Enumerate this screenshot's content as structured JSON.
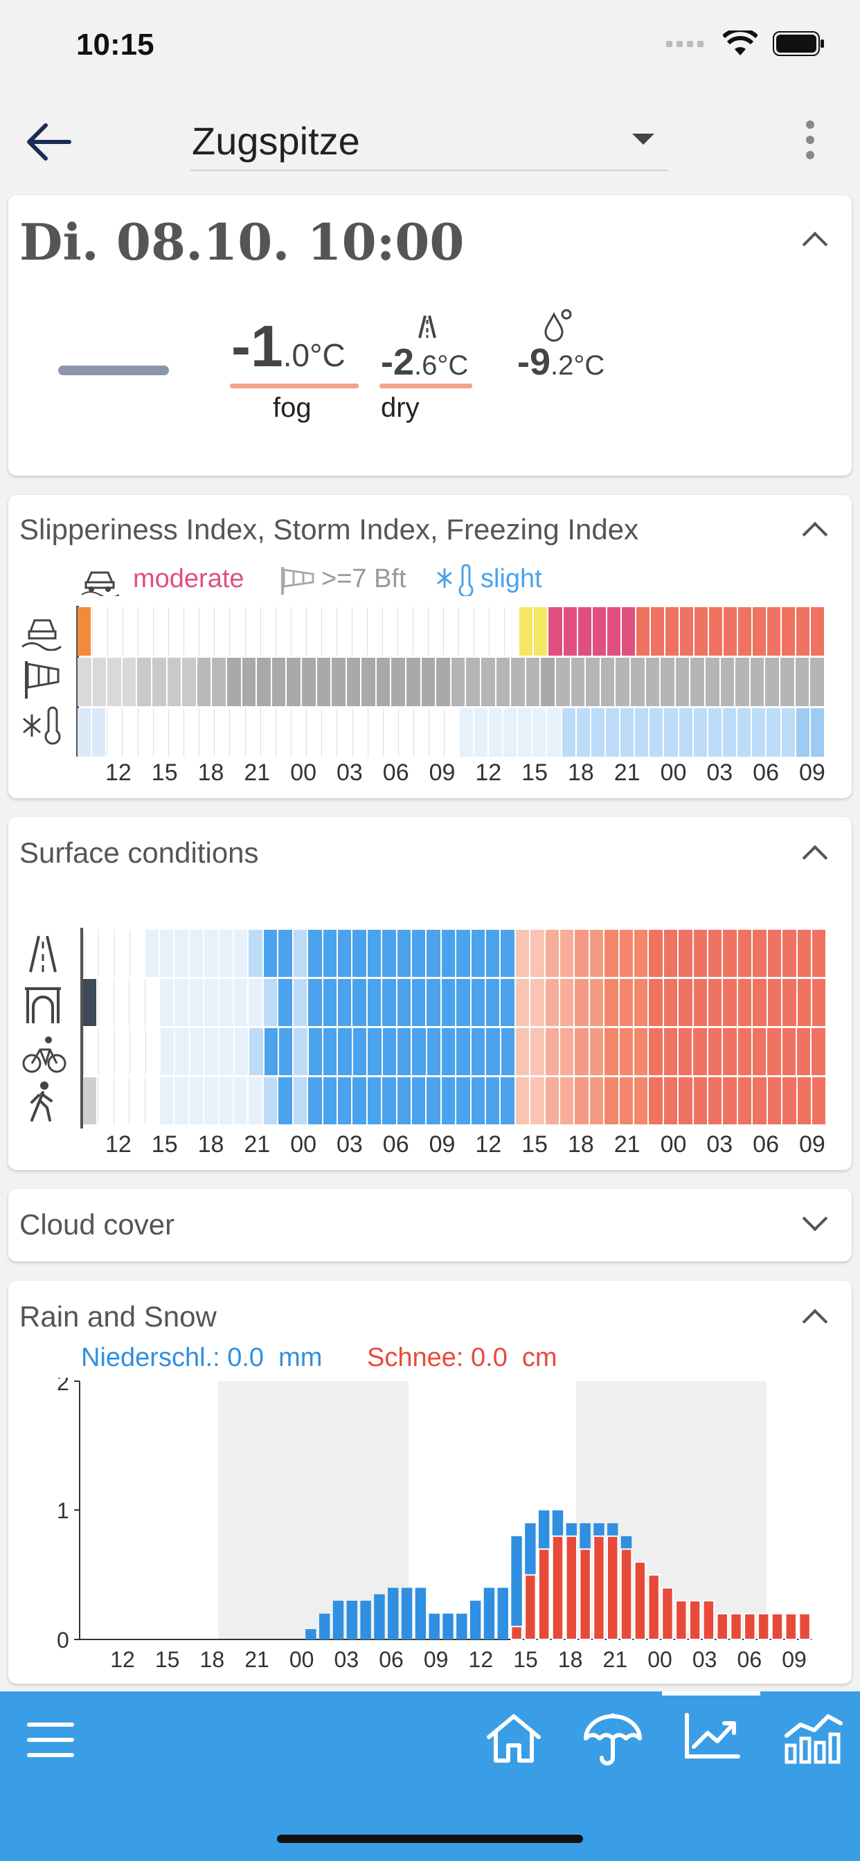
{
  "status": {
    "time": "10:15"
  },
  "header": {
    "title": "Zugspitze"
  },
  "current": {
    "datetime": "Di. 08.10. 10:00",
    "air_temp_int": "-1",
    "air_temp_dec": ".0°C",
    "air_label": "fog",
    "road_temp_int": "-2",
    "road_temp_dec": ".6°C",
    "road_label": "dry",
    "dew_temp_int": "-9",
    "dew_temp_dec": ".2°C"
  },
  "indices": {
    "title": "Slipperiness Index, Storm Index, Freezing Index",
    "slippery_label": "moderate",
    "storm_label": ">=7 Bft",
    "freezing_label": "slight",
    "hour_ticks": [
      "12",
      "15",
      "18",
      "21",
      "00",
      "03",
      "06",
      "09",
      "12",
      "15",
      "18",
      "21",
      "00",
      "03",
      "06",
      "09"
    ],
    "slippery_cells": [
      "#f28a3c",
      "#fff",
      "#fff",
      "#fff",
      "#fff",
      "#fff",
      "#fff",
      "#fff",
      "#fff",
      "#fff",
      "#fff",
      "#fff",
      "#fff",
      "#fff",
      "#fff",
      "#fff",
      "#fff",
      "#fff",
      "#fff",
      "#fff",
      "#fff",
      "#fff",
      "#fff",
      "#fff",
      "#fff",
      "#fff",
      "#fff",
      "#fff",
      "#fff",
      "#f5e663",
      "#f5e663",
      "#e0507f",
      "#e0507f",
      "#e0507f",
      "#e0507f",
      "#e0507f",
      "#e0507f",
      "#f07260",
      "#f07260",
      "#f07260",
      "#f07260",
      "#f07260",
      "#f07260",
      "#f07260",
      "#f07260",
      "#f07260",
      "#f07260",
      "#f07260",
      "#f07260",
      "#f07260"
    ],
    "storm_cells": [
      "#d9d9d9",
      "#d9d9d9",
      "#d9d9d9",
      "#d9d9d9",
      "#c9c9c9",
      "#c9c9c9",
      "#c9c9c9",
      "#c9c9c9",
      "#b9b9b9",
      "#b9b9b9",
      "#a9a9a9",
      "#a9a9a9",
      "#a9a9a9",
      "#a9a9a9",
      "#a9a9a9",
      "#a9a9a9",
      "#a9a9a9",
      "#a9a9a9",
      "#a9a9a9",
      "#a9a9a9",
      "#a9a9a9",
      "#a9a9a9",
      "#a9a9a9",
      "#a9a9a9",
      "#a9a9a9",
      "#b5b5b5",
      "#b5b5b5",
      "#b5b5b5",
      "#b5b5b5",
      "#b5b5b5",
      "#b5b5b5",
      "#a9a9a9",
      "#b5b5b5",
      "#b5b5b5",
      "#b5b5b5",
      "#b5b5b5",
      "#b5b5b5",
      "#b5b5b5",
      "#b5b5b5",
      "#b5b5b5",
      "#b5b5b5",
      "#b5b5b5",
      "#b5b5b5",
      "#b5b5b5",
      "#b5b5b5",
      "#b5b5b5",
      "#b5b5b5",
      "#b5b5b5",
      "#b5b5b5",
      "#b5b5b5"
    ],
    "freezing_cells": [
      "#dbeaf8",
      "#dbeaf8",
      "#fff",
      "#fff",
      "#fff",
      "#fff",
      "#fff",
      "#fff",
      "#fff",
      "#fff",
      "#fff",
      "#fff",
      "#fff",
      "#fff",
      "#fff",
      "#fff",
      "#fff",
      "#fff",
      "#fff",
      "#fff",
      "#fff",
      "#fff",
      "#fff",
      "#fff",
      "#fff",
      "#e6f1fb",
      "#e6f1fb",
      "#e6f1fb",
      "#e6f1fb",
      "#e6f1fb",
      "#e6f1fb",
      "#e6f1fb",
      "#bcdcf7",
      "#bcdcf7",
      "#bcdcf7",
      "#bcdcf7",
      "#bcdcf7",
      "#bcdcf7",
      "#bcdcf7",
      "#bcdcf7",
      "#bcdcf7",
      "#bcdcf7",
      "#bcdcf7",
      "#bcdcf7",
      "#bcdcf7",
      "#bcdcf7",
      "#bcdcf7",
      "#bcdcf7",
      "#9ecbf3",
      "#9ecbf3"
    ]
  },
  "surface": {
    "title": "Surface conditions",
    "hour_ticks": [
      "12",
      "15",
      "18",
      "21",
      "00",
      "03",
      "06",
      "09",
      "12",
      "15",
      "18",
      "21",
      "00",
      "03",
      "06",
      "09"
    ],
    "rows": [
      [
        "#fff",
        "#fff",
        "#fff",
        "#fff",
        "#e6f1fb",
        "#e6f1fb",
        "#e6f1fb",
        "#e6f1fb",
        "#e6f1fb",
        "#e6f1fb",
        "#e6f1fb",
        "#bcdcf7",
        "#4aa3ec",
        "#4aa3ec",
        "#bcdcf7",
        "#4aa3ec",
        "#4aa3ec",
        "#4aa3ec",
        "#4aa3ec",
        "#4aa3ec",
        "#4aa3ec",
        "#4aa3ec",
        "#4aa3ec",
        "#4aa3ec",
        "#4aa3ec",
        "#4aa3ec",
        "#4aa3ec",
        "#4aa3ec",
        "#4aa3ec",
        "#f9c4b4",
        "#f9c4b4",
        "#f7ad98",
        "#f7ad98",
        "#f59a82",
        "#f59a82",
        "#f4866b",
        "#f4866b",
        "#f4866b",
        "#f07260",
        "#f07260",
        "#f07260",
        "#f07260",
        "#f07260",
        "#f07260",
        "#f07260",
        "#f07260",
        "#f07260",
        "#f07260",
        "#f07260",
        "#f07260"
      ],
      [
        "#3d4a57",
        "#fff",
        "#fff",
        "#fff",
        "#fff",
        "#e6f1fb",
        "#e6f1fb",
        "#e6f1fb",
        "#e6f1fb",
        "#e6f1fb",
        "#e6f1fb",
        "#e6f1fb",
        "#bcdcf7",
        "#4aa3ec",
        "#bcdcf7",
        "#4aa3ec",
        "#4aa3ec",
        "#4aa3ec",
        "#4aa3ec",
        "#4aa3ec",
        "#4aa3ec",
        "#4aa3ec",
        "#4aa3ec",
        "#4aa3ec",
        "#4aa3ec",
        "#4aa3ec",
        "#4aa3ec",
        "#4aa3ec",
        "#4aa3ec",
        "#f9c4b4",
        "#f9c4b4",
        "#f7ad98",
        "#f7ad98",
        "#f59a82",
        "#f59a82",
        "#f4866b",
        "#f4866b",
        "#f4866b",
        "#f07260",
        "#f07260",
        "#f07260",
        "#f07260",
        "#f07260",
        "#f07260",
        "#f07260",
        "#f07260",
        "#f07260",
        "#f07260",
        "#f07260",
        "#f07260"
      ],
      [
        "#fff",
        "#fff",
        "#fff",
        "#fff",
        "#fff",
        "#e6f1fb",
        "#e6f1fb",
        "#e6f1fb",
        "#e6f1fb",
        "#e6f1fb",
        "#e6f1fb",
        "#bcdcf7",
        "#4aa3ec",
        "#4aa3ec",
        "#bcdcf7",
        "#4aa3ec",
        "#4aa3ec",
        "#4aa3ec",
        "#4aa3ec",
        "#4aa3ec",
        "#4aa3ec",
        "#4aa3ec",
        "#4aa3ec",
        "#4aa3ec",
        "#4aa3ec",
        "#4aa3ec",
        "#4aa3ec",
        "#4aa3ec",
        "#4aa3ec",
        "#f9c4b4",
        "#f9c4b4",
        "#f7ad98",
        "#f7ad98",
        "#f59a82",
        "#f59a82",
        "#f4866b",
        "#f4866b",
        "#f4866b",
        "#f07260",
        "#f07260",
        "#f07260",
        "#f07260",
        "#f07260",
        "#f07260",
        "#f07260",
        "#f07260",
        "#f07260",
        "#f07260",
        "#f07260",
        "#f07260"
      ],
      [
        "#cfcfcf",
        "#fff",
        "#fff",
        "#fff",
        "#fff",
        "#e6f1fb",
        "#e6f1fb",
        "#e6f1fb",
        "#e6f1fb",
        "#e6f1fb",
        "#e6f1fb",
        "#e6f1fb",
        "#bcdcf7",
        "#4aa3ec",
        "#bcdcf7",
        "#4aa3ec",
        "#4aa3ec",
        "#4aa3ec",
        "#4aa3ec",
        "#4aa3ec",
        "#4aa3ec",
        "#4aa3ec",
        "#4aa3ec",
        "#4aa3ec",
        "#4aa3ec",
        "#4aa3ec",
        "#4aa3ec",
        "#4aa3ec",
        "#4aa3ec",
        "#f9c4b4",
        "#f9c4b4",
        "#f7ad98",
        "#f7ad98",
        "#f59a82",
        "#f59a82",
        "#f4866b",
        "#f4866b",
        "#f4866b",
        "#f07260",
        "#f07260",
        "#f07260",
        "#f07260",
        "#f07260",
        "#f07260",
        "#f07260",
        "#f07260",
        "#f07260",
        "#f07260",
        "#f07260",
        "#f07260"
      ]
    ]
  },
  "cloud": {
    "title": "Cloud cover"
  },
  "rain": {
    "title": "Rain and Snow",
    "legend_rain": "Niederschl.: 0.0  mm",
    "legend_snow": "Schnee: 0.0  cm",
    "y_ticks": [
      "2",
      "1",
      "0"
    ]
  },
  "chart_data": {
    "type": "bar",
    "title": "Rain and Snow",
    "xlabel": "",
    "ylabel": "",
    "ylim": [
      0,
      2
    ],
    "x_tick_labels": [
      "12",
      "15",
      "18",
      "21",
      "00",
      "03",
      "06",
      "09",
      "12",
      "15",
      "18",
      "21",
      "00",
      "03",
      "06",
      "09"
    ],
    "series": [
      {
        "name": "Niederschl.",
        "color": "#2f8fe0",
        "values": [
          0,
          0,
          0,
          0,
          0,
          0,
          0,
          0,
          0,
          0,
          0,
          0,
          0,
          0,
          0,
          0,
          0.08,
          0.2,
          0.3,
          0.3,
          0.3,
          0.35,
          0.4,
          0.4,
          0.4,
          0.2,
          0.2,
          0.2,
          0.3,
          0.4,
          0.4,
          0.8,
          0.9,
          1.0,
          1.0,
          0.9,
          0.9,
          0.9,
          0.9,
          0.8,
          0.6,
          0.5,
          0.4,
          0.3,
          0.3,
          0.3,
          0.2,
          0.2,
          0.2,
          0.2,
          0.2,
          0.2,
          0.2
        ]
      },
      {
        "name": "Schnee",
        "color": "#e84a3a",
        "values": [
          0,
          0,
          0,
          0,
          0,
          0,
          0,
          0,
          0,
          0,
          0,
          0,
          0,
          0,
          0,
          0,
          0,
          0,
          0,
          0,
          0,
          0,
          0,
          0,
          0,
          0,
          0,
          0,
          0,
          0,
          0,
          0.1,
          0.5,
          0.7,
          0.8,
          0.8,
          0.7,
          0.8,
          0.8,
          0.7,
          0.6,
          0.5,
          0.4,
          0.3,
          0.3,
          0.3,
          0.2,
          0.2,
          0.2,
          0.2,
          0.2,
          0.2,
          0.2
        ]
      }
    ]
  }
}
